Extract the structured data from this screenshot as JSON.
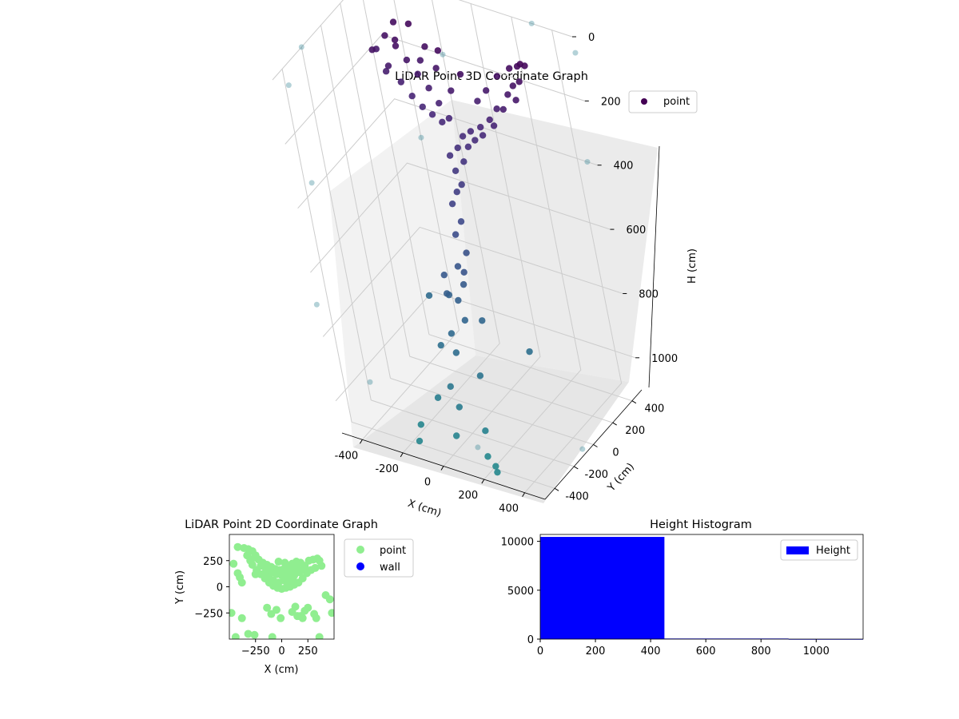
{
  "chart_data": [
    {
      "type": "scatter",
      "projection": "3d",
      "title": "LiDAR Point 3D Coordinate Graph",
      "xlabel": "X (cm)",
      "ylabel": "Y (cm)",
      "zlabel": "H (cm)",
      "xlim": [
        -500,
        500
      ],
      "ylim": [
        -500,
        500
      ],
      "zlim": [
        1100,
        0
      ],
      "xticks": [
        "-400",
        "-200",
        "0",
        "200",
        "400"
      ],
      "yticks": [
        "-400",
        "-200",
        "0",
        "200",
        "400"
      ],
      "zticks": [
        "0",
        "200",
        "400",
        "600",
        "800",
        "1000"
      ],
      "colormap": "viridis (color by height)",
      "legend": {
        "position": "top-right",
        "entries": [
          "point"
        ]
      },
      "series": [
        {
          "name": "point",
          "color": "#440154",
          "points_xyh": [
            [
              -380,
              330,
              120
            ],
            [
              -340,
              360,
              80
            ],
            [
              -420,
              300,
              160
            ],
            [
              -300,
              280,
              100
            ],
            [
              -250,
              340,
              60
            ],
            [
              -360,
              250,
              200
            ],
            [
              -200,
              300,
              150
            ],
            [
              -150,
              280,
              90
            ],
            [
              -100,
              260,
              140
            ],
            [
              -60,
              240,
              70
            ],
            [
              -20,
              220,
              180
            ],
            [
              40,
              230,
              120
            ],
            [
              90,
              250,
              200
            ],
            [
              140,
              260,
              160
            ],
            [
              200,
              280,
              110
            ],
            [
              260,
              300,
              80
            ],
            [
              310,
              290,
              60
            ],
            [
              340,
              270,
              40
            ],
            [
              300,
              240,
              150
            ],
            [
              230,
              230,
              190
            ],
            [
              160,
              210,
              230
            ],
            [
              110,
              200,
              260
            ],
            [
              60,
              190,
              280
            ],
            [
              20,
              180,
              300
            ],
            [
              -40,
              190,
              260
            ],
            [
              -90,
              210,
              230
            ],
            [
              -140,
              230,
              200
            ],
            [
              -190,
              240,
              170
            ],
            [
              -240,
              250,
              140
            ],
            [
              -290,
              260,
              110
            ],
            [
              0,
              150,
              330
            ],
            [
              30,
              130,
              360
            ],
            [
              -10,
              110,
              390
            ],
            [
              20,
              90,
              420
            ],
            [
              0,
              70,
              440
            ],
            [
              -30,
              120,
              350
            ],
            [
              50,
              160,
              320
            ],
            [
              80,
              180,
              300
            ],
            [
              120,
              190,
              280
            ],
            [
              170,
              220,
              250
            ],
            [
              -380,
              200,
              120
            ],
            [
              -330,
              230,
              170
            ],
            [
              -280,
              230,
              210
            ],
            [
              -230,
              220,
              240
            ],
            [
              -180,
              210,
              260
            ],
            [
              -130,
              200,
              270
            ],
            [
              -80,
              190,
              280
            ],
            [
              190,
              240,
              200
            ],
            [
              250,
              260,
              150
            ],
            [
              280,
              270,
              120
            ],
            [
              330,
              250,
              90
            ],
            [
              350,
              290,
              50
            ],
            [
              -30,
              60,
              480
            ],
            [
              10,
              40,
              520
            ],
            [
              -20,
              20,
              560
            ],
            [
              30,
              0,
              600
            ],
            [
              -10,
              -30,
              640
            ],
            [
              20,
              -60,
              680
            ],
            [
              0,
              -100,
              720
            ],
            [
              -40,
              -120,
              700
            ],
            [
              40,
              -140,
              760
            ],
            [
              -20,
              -180,
              800
            ],
            [
              10,
              -220,
              840
            ],
            [
              -60,
              -80,
              660
            ],
            [
              60,
              -100,
              620
            ],
            [
              -80,
              -40,
              740
            ],
            [
              80,
              -60,
              780
            ],
            [
              -100,
              -160,
              860
            ],
            [
              100,
              -200,
              900
            ],
            [
              -30,
              -260,
              940
            ],
            [
              20,
              -300,
              980
            ],
            [
              -120,
              -240,
              1000
            ],
            [
              120,
              -280,
              1040
            ],
            [
              0,
              -340,
              1060
            ],
            [
              -200,
              -300,
              1080
            ],
            [
              150,
              -350,
              1090
            ],
            [
              -150,
              -420,
              1080
            ],
            [
              200,
              -380,
              1100
            ],
            [
              240,
              -440,
              1090
            ],
            [
              -260,
              80,
              820
            ],
            [
              260,
              0,
              860
            ]
          ]
        }
      ],
      "faint_points_note": "Outlying points near the axes limits"
    },
    {
      "type": "scatter",
      "title": "LiDAR Point 2D Coordinate Graph",
      "xlabel": "X (cm)",
      "ylabel": "Y (cm)",
      "xlim": [
        -500,
        500
      ],
      "ylim": [
        -500,
        500
      ],
      "xticks": [
        "−250",
        "0",
        "250"
      ],
      "yticks": [
        "250",
        "0",
        "−250"
      ],
      "legend": {
        "position": "outside-right",
        "entries": [
          "point",
          "wall"
        ]
      },
      "series": [
        {
          "name": "point",
          "color": "#90ee90",
          "points": [
            [
              -420,
              380
            ],
            [
              -360,
              370
            ],
            [
              -330,
              300
            ],
            [
              -460,
              220
            ],
            [
              -420,
              130
            ],
            [
              -400,
              90
            ],
            [
              -380,
              40
            ],
            [
              -480,
              -250
            ],
            [
              -440,
              -480
            ],
            [
              -380,
              -300
            ],
            [
              -320,
              -450
            ],
            [
              -260,
              -460
            ],
            [
              -140,
              -200
            ],
            [
              -100,
              -260
            ],
            [
              -90,
              -480
            ],
            [
              100,
              -240
            ],
            [
              150,
              -280
            ],
            [
              180,
              -280
            ],
            [
              220,
              -230
            ],
            [
              250,
              -200
            ],
            [
              310,
              -260
            ],
            [
              330,
              -300
            ],
            [
              360,
              -480
            ],
            [
              420,
              -80
            ],
            [
              460,
              -120
            ],
            [
              480,
              -250
            ],
            [
              200,
              -300
            ],
            [
              130,
              -190
            ],
            [
              -50,
              -220
            ],
            [
              -10,
              -300
            ],
            [
              260,
              250
            ],
            [
              300,
              260
            ],
            [
              340,
              270
            ],
            [
              360,
              250
            ],
            [
              380,
              200
            ],
            [
              320,
              180
            ],
            [
              280,
              160
            ],
            [
              240,
              130
            ],
            [
              200,
              80
            ],
            [
              160,
              40
            ],
            [
              120,
              20
            ],
            [
              80,
              0
            ],
            [
              40,
              -10
            ],
            [
              0,
              -20
            ],
            [
              -40,
              -10
            ],
            [
              -80,
              10
            ],
            [
              -120,
              40
            ],
            [
              -160,
              80
            ],
            [
              -200,
              120
            ],
            [
              -240,
              160
            ],
            [
              -280,
              210
            ],
            [
              -300,
              250
            ],
            [
              -260,
              280
            ],
            [
              -220,
              260
            ],
            [
              -180,
              230
            ],
            [
              -140,
              210
            ],
            [
              -100,
              190
            ],
            [
              -60,
              170
            ],
            [
              -20,
              160
            ],
            [
              20,
              170
            ],
            [
              60,
              190
            ],
            [
              100,
              220
            ],
            [
              140,
              240
            ],
            [
              180,
              230
            ],
            [
              220,
              200
            ],
            [
              -200,
              200
            ],
            [
              -150,
              170
            ],
            [
              -100,
              140
            ],
            [
              -50,
              120
            ],
            [
              0,
              110
            ],
            [
              50,
              120
            ],
            [
              100,
              150
            ],
            [
              150,
              180
            ],
            [
              -120,
              100
            ],
            [
              -80,
              60
            ],
            [
              -30,
              40
            ],
            [
              20,
              60
            ],
            [
              70,
              80
            ],
            [
              120,
              110
            ],
            [
              170,
              140
            ],
            [
              210,
              160
            ],
            [
              -250,
              300
            ],
            [
              -280,
              340
            ],
            [
              -320,
              360
            ],
            [
              30,
              230
            ],
            [
              -30,
              240
            ],
            [
              -250,
              120
            ],
            [
              -160,
              130
            ],
            [
              60,
              30
            ],
            [
              110,
              60
            ]
          ]
        },
        {
          "name": "wall",
          "color": "#0000ff",
          "points": []
        }
      ]
    },
    {
      "type": "bar",
      "title": "Height Histogram",
      "xlabel": "",
      "ylabel": "",
      "xlim": [
        0,
        1170
      ],
      "ylim": [
        0,
        10700
      ],
      "xticks": [
        "0",
        "200",
        "400",
        "600",
        "800",
        "1000"
      ],
      "yticks": [
        "0",
        "5000",
        "10000"
      ],
      "legend": {
        "position": "top-right",
        "entries": [
          "Height"
        ]
      },
      "series": [
        {
          "name": "Height",
          "color": "#0000ff",
          "bins": [
            {
              "start": 0,
              "end": 450,
              "count": 10450
            },
            {
              "start": 450,
              "end": 900,
              "count": 60
            },
            {
              "start": 900,
              "end": 1170,
              "count": 8
            }
          ]
        }
      ]
    }
  ]
}
